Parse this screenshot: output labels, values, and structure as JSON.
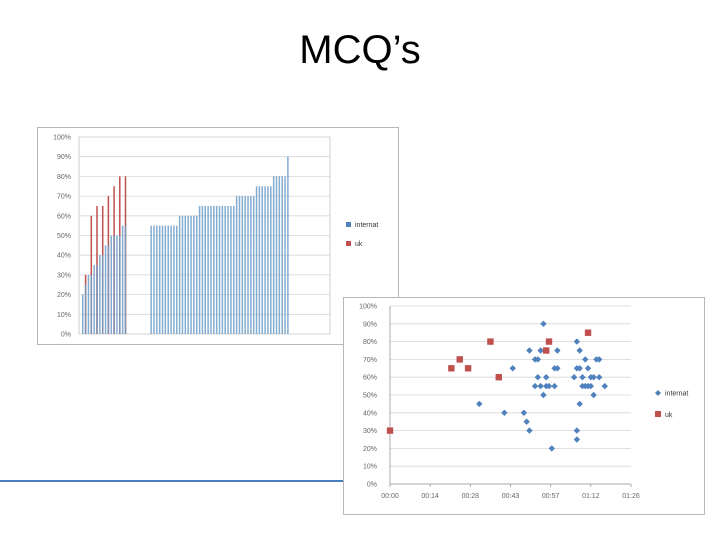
{
  "slide": {
    "title": "MCQ’s"
  },
  "colors": {
    "internat": "#4f81bd",
    "uk": "#c0504d",
    "accent_line": "#4a7ebb"
  },
  "chart_data": [
    {
      "type": "bar",
      "title": "",
      "xlabel": "",
      "ylabel": "",
      "ylim": [
        0,
        100
      ],
      "y_ticks": [
        "0%",
        "10%",
        "20%",
        "30%",
        "40%",
        "50%",
        "60%",
        "70%",
        "80%",
        "90%",
        "100%"
      ],
      "grid": true,
      "legend_position": "right",
      "series": [
        {
          "name": "internat",
          "values": [
            20,
            25,
            30,
            30,
            35,
            35,
            40,
            40,
            45,
            45,
            50,
            50,
            50,
            50,
            55,
            55,
            55,
            55,
            55,
            55,
            55,
            55,
            55,
            55,
            55,
            55,
            60,
            60,
            60,
            60,
            60,
            60,
            60,
            65,
            65,
            65,
            65,
            65,
            65,
            65,
            65,
            65,
            65,
            65,
            65,
            65,
            70,
            70,
            70,
            70,
            70,
            70,
            70,
            75,
            75,
            75,
            75,
            75,
            75,
            80,
            80,
            80,
            80,
            80,
            90
          ]
        },
        {
          "name": "uk",
          "values": [
            30,
            60,
            65,
            65,
            70,
            75,
            80,
            80
          ]
        }
      ]
    },
    {
      "type": "scatter",
      "title": "",
      "xlabel": "",
      "ylabel": "",
      "x_ticks": [
        "00:00",
        "00:14",
        "00:28",
        "00:43",
        "00:57",
        "01:12",
        "01:26"
      ],
      "x_range_minutes": [
        0,
        86.4
      ],
      "y_ticks": [
        "0%",
        "10%",
        "20%",
        "30%",
        "40%",
        "50%",
        "60%",
        "70%",
        "80%",
        "90%",
        "100%"
      ],
      "ylim": [
        0,
        100
      ],
      "grid": true,
      "legend_position": "right",
      "series": [
        {
          "name": "internat",
          "marker": "diamond",
          "points": [
            [
              32,
              45
            ],
            [
              41,
              40
            ],
            [
              44,
              65
            ],
            [
              48,
              40
            ],
            [
              49,
              35
            ],
            [
              50,
              30
            ],
            [
              50,
              75
            ],
            [
              52,
              70
            ],
            [
              52,
              55
            ],
            [
              53,
              70
            ],
            [
              53,
              60
            ],
            [
              54,
              75
            ],
            [
              54,
              55
            ],
            [
              55,
              90
            ],
            [
              55,
              50
            ],
            [
              56,
              75
            ],
            [
              56,
              60
            ],
            [
              56,
              55
            ],
            [
              57,
              55
            ],
            [
              58,
              20
            ],
            [
              59,
              65
            ],
            [
              59,
              55
            ],
            [
              60,
              75
            ],
            [
              60,
              65
            ],
            [
              66,
              60
            ],
            [
              67,
              80
            ],
            [
              67,
              65
            ],
            [
              67,
              30
            ],
            [
              67,
              25
            ],
            [
              68,
              75
            ],
            [
              68,
              65
            ],
            [
              68,
              45
            ],
            [
              69,
              60
            ],
            [
              69,
              55
            ],
            [
              70,
              70
            ],
            [
              70,
              55
            ],
            [
              71,
              65
            ],
            [
              71,
              55
            ],
            [
              72,
              60
            ],
            [
              72,
              55
            ],
            [
              73,
              50
            ],
            [
              73,
              60
            ],
            [
              74,
              70
            ],
            [
              75,
              70
            ],
            [
              75,
              60
            ],
            [
              77,
              55
            ]
          ]
        },
        {
          "name": "uk",
          "marker": "square",
          "points": [
            [
              0,
              30
            ],
            [
              22,
              65
            ],
            [
              25,
              70
            ],
            [
              28,
              65
            ],
            [
              36,
              80
            ],
            [
              39,
              60
            ],
            [
              56,
              75
            ],
            [
              57,
              80
            ],
            [
              71,
              85
            ]
          ]
        }
      ]
    }
  ]
}
